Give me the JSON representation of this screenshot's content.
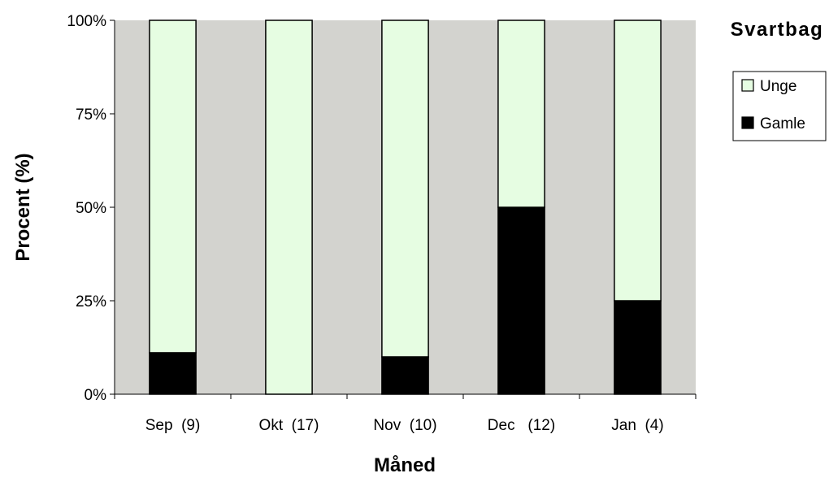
{
  "chart_data": {
    "type": "bar",
    "stacked": "percent",
    "title": "Svartbag",
    "xlabel": "Måned",
    "ylabel": "Procent (%)",
    "categories": [
      "Sep  (9)",
      "Okt  (17)",
      "Nov  (10)",
      "Dec   (12)",
      "Jan  (4)"
    ],
    "series": [
      {
        "name": "Gamle",
        "values": [
          11.1,
          0,
          10,
          50,
          25
        ],
        "color": "#000000"
      },
      {
        "name": "Unge",
        "values": [
          88.9,
          100,
          90,
          50,
          75
        ],
        "color": "#e6fde2"
      }
    ],
    "ylim": [
      0,
      100
    ],
    "yticks": [
      "0%",
      "25%",
      "50%",
      "75%",
      "100%"
    ],
    "plot_background": "#d3d3cf",
    "grid": false,
    "legend_position": "right",
    "legend_order": [
      "Unge",
      "Gamle"
    ]
  }
}
